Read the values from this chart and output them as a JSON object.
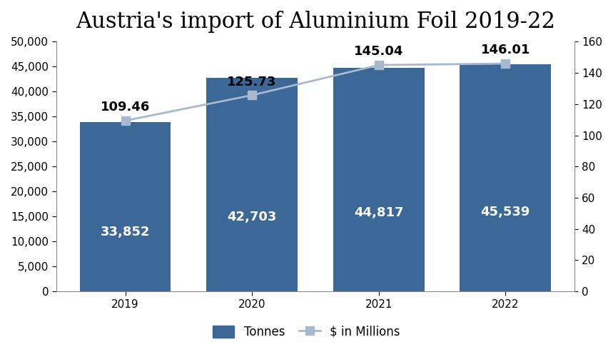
{
  "title": "Austria's import of Aluminium Foil 2019-22",
  "years": [
    "2019",
    "2020",
    "2021",
    "2022"
  ],
  "tonnes": [
    33852,
    42703,
    44817,
    45539
  ],
  "millions": [
    109.46,
    125.73,
    145.04,
    146.01
  ],
  "bar_color": "#3B6897",
  "line_color": "#A8B8D0",
  "line_marker_color": "#A8B8D0",
  "bar_labels": [
    "33,852",
    "42,703",
    "44,817",
    "45,539"
  ],
  "line_labels": [
    "109.46",
    "125.73",
    "145.04",
    "146.01"
  ],
  "ylim_left": [
    0,
    50000
  ],
  "ylim_right": [
    0,
    160
  ],
  "yticks_left": [
    0,
    5000,
    10000,
    15000,
    20000,
    25000,
    30000,
    35000,
    40000,
    45000,
    50000
  ],
  "yticks_right": [
    0,
    20,
    40,
    60,
    80,
    100,
    120,
    140,
    160
  ],
  "legend_labels": [
    "Tonnes",
    "$ in Millions"
  ],
  "title_fontsize": 22,
  "bar_label_fontsize": 13,
  "line_label_fontsize": 13,
  "tick_fontsize": 11,
  "background_color": "#FFFFFF",
  "bar_width": 0.72
}
